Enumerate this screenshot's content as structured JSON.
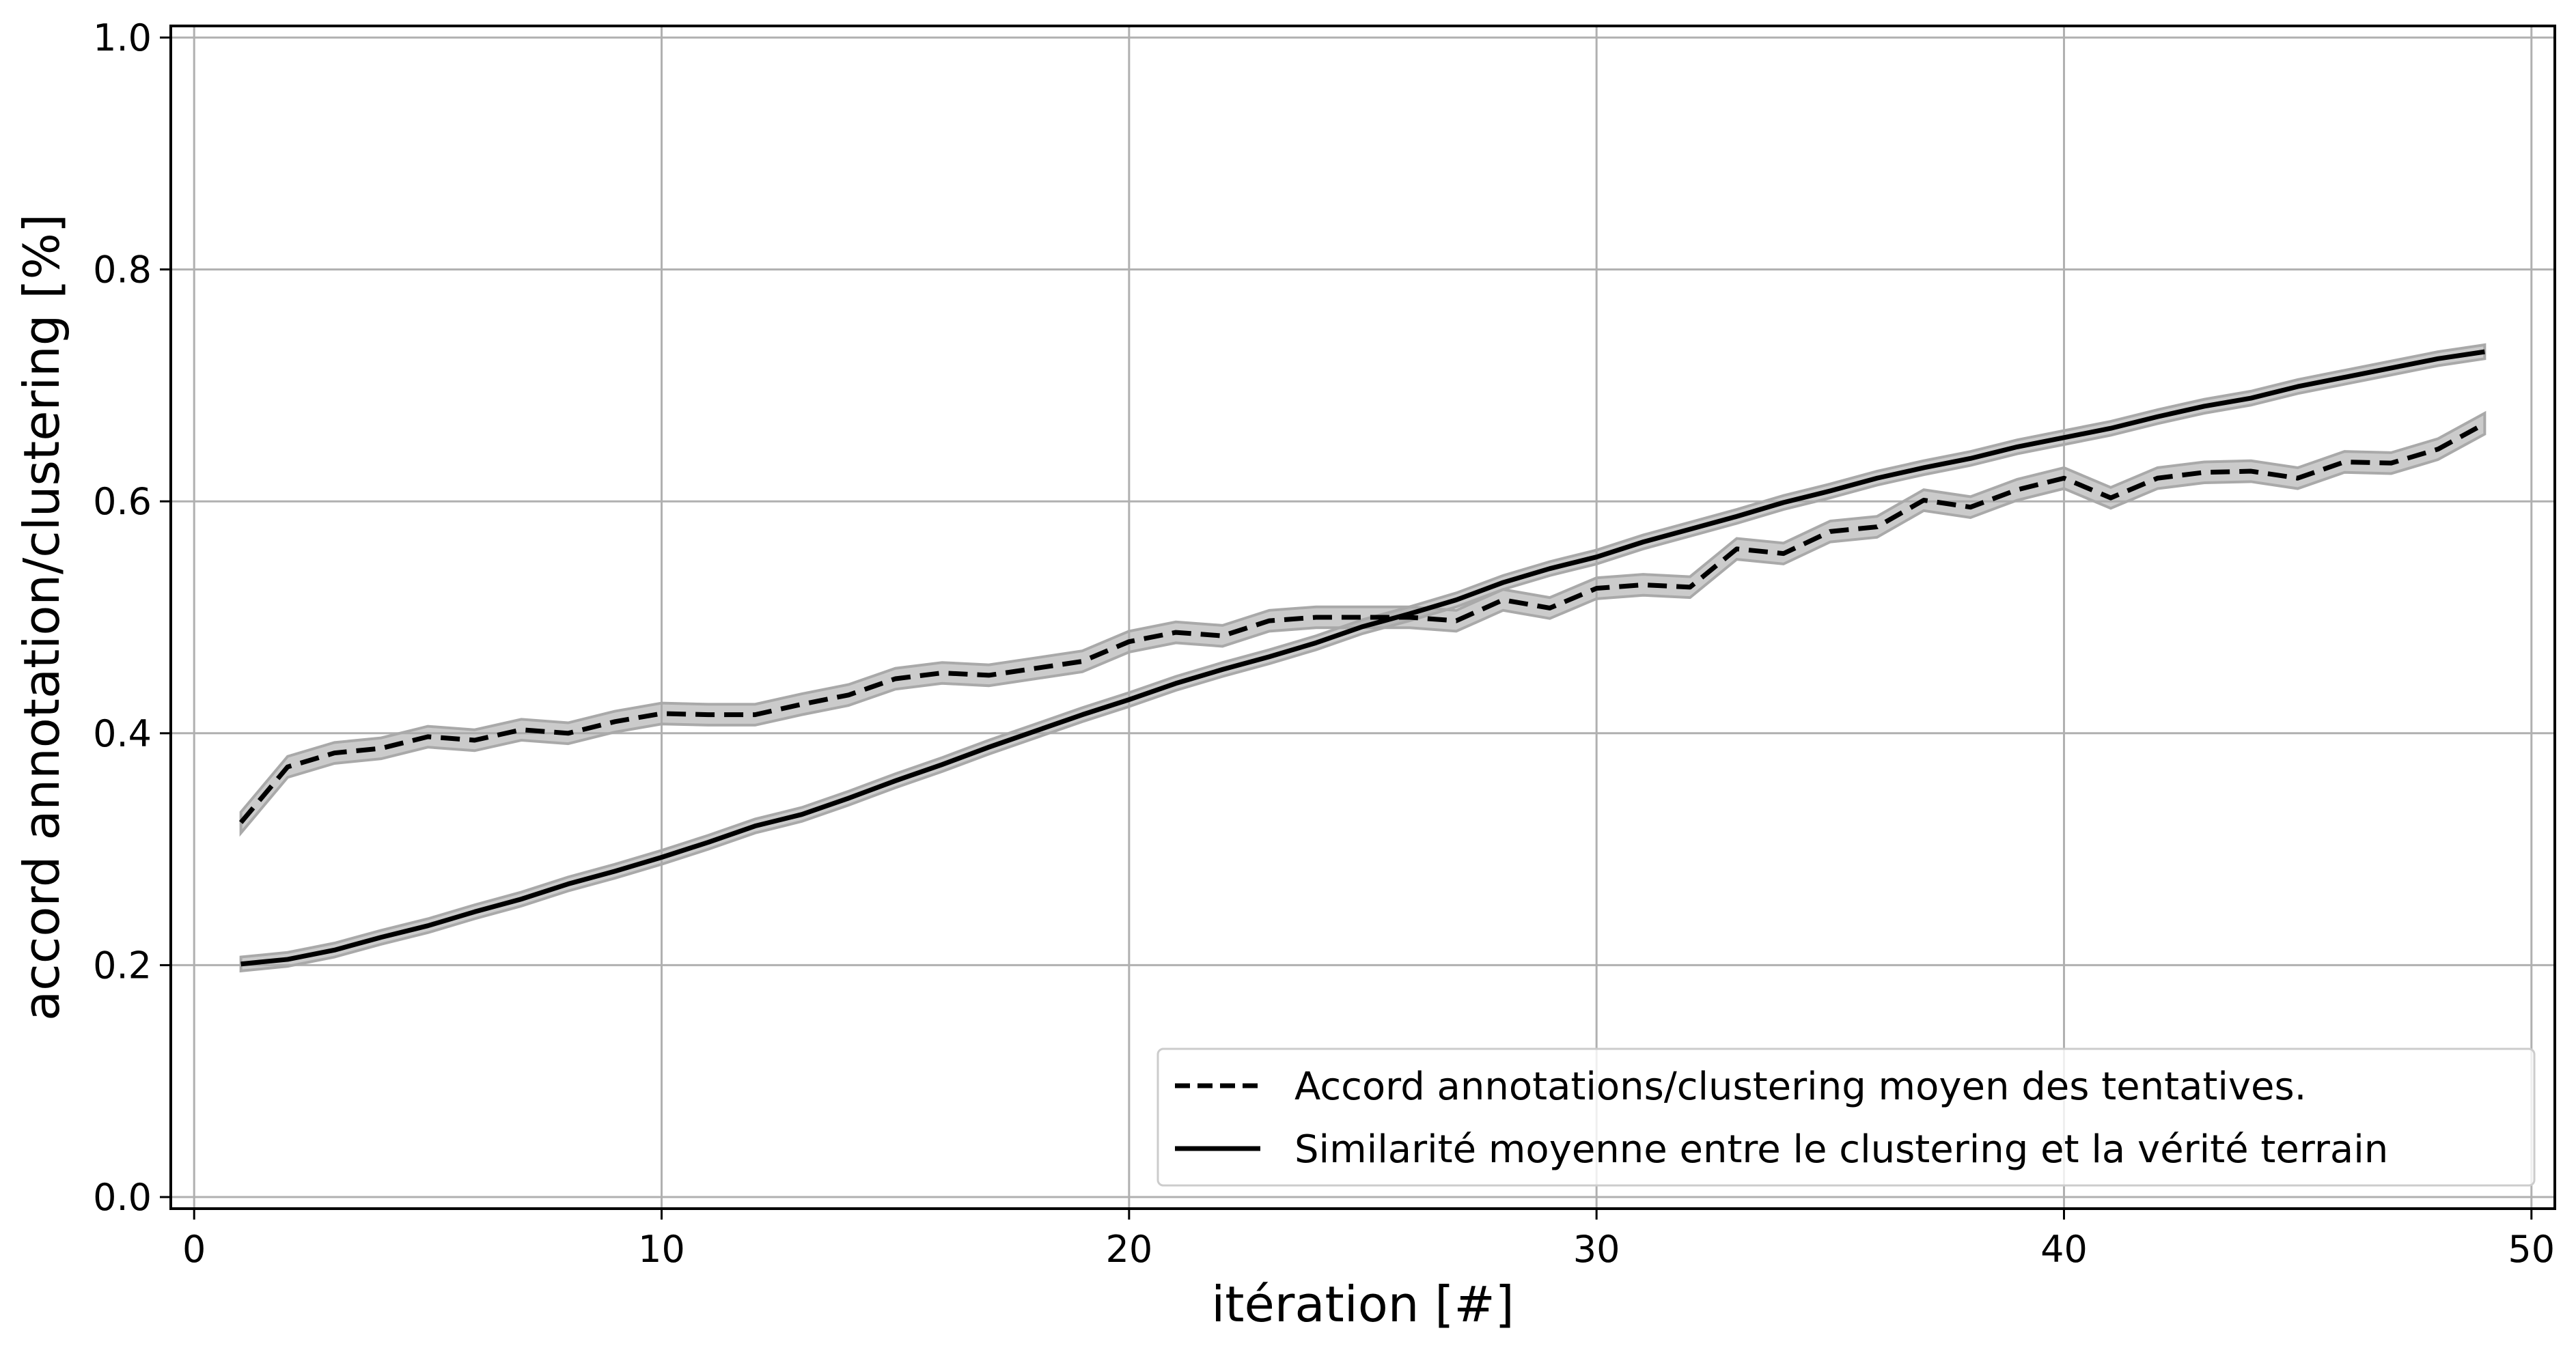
{
  "chart_data": {
    "type": "line",
    "xlabel": "itération [#]",
    "ylabel": "accord annotation/clustering [%]",
    "xlim": [
      -0.5,
      50.5
    ],
    "ylim": [
      -0.01,
      1.01
    ],
    "xticks": [
      0,
      10,
      20,
      30,
      40,
      50
    ],
    "yticks": [
      0.0,
      0.2,
      0.4,
      0.6,
      0.8,
      1.0
    ],
    "xtick_labels": [
      "0",
      "10",
      "20",
      "30",
      "40",
      "50"
    ],
    "ytick_labels": [
      "0.0",
      "0.2",
      "0.4",
      "0.6",
      "0.8",
      "1.0"
    ],
    "grid": true,
    "legend_position": "bottom-right",
    "colors": {
      "line": "#000000",
      "band": "#a9a9a9",
      "grid": "#b0b0b0"
    },
    "x": [
      1,
      2,
      3,
      4,
      5,
      6,
      7,
      8,
      9,
      10,
      11,
      12,
      13,
      14,
      15,
      16,
      17,
      18,
      19,
      20,
      21,
      22,
      23,
      24,
      25,
      26,
      27,
      28,
      29,
      30,
      31,
      32,
      33,
      34,
      35,
      36,
      37,
      38,
      39,
      40,
      41,
      42,
      43,
      44,
      45,
      46,
      47,
      48,
      49
    ],
    "series": [
      {
        "name": "Accord annotations/clustering moyen des tentatives.",
        "style": "dashed",
        "values": [
          0.323,
          0.371,
          0.383,
          0.387,
          0.397,
          0.394,
          0.403,
          0.4,
          0.41,
          0.417,
          0.416,
          0.416,
          0.425,
          0.433,
          0.447,
          0.452,
          0.45,
          0.456,
          0.462,
          0.479,
          0.487,
          0.484,
          0.497,
          0.5,
          0.5,
          0.5,
          0.497,
          0.515,
          0.508,
          0.525,
          0.528,
          0.526,
          0.559,
          0.555,
          0.574,
          0.578,
          0.601,
          0.595,
          0.61,
          0.62,
          0.603,
          0.62,
          0.625,
          0.626,
          0.62,
          0.634,
          0.633,
          0.645,
          0.667
        ],
        "band": 0.009
      },
      {
        "name": "Similarité moyenne entre le clustering et la vérité terrain",
        "style": "solid",
        "values": [
          0.201,
          0.205,
          0.213,
          0.224,
          0.234,
          0.246,
          0.257,
          0.27,
          0.281,
          0.293,
          0.306,
          0.32,
          0.33,
          0.344,
          0.359,
          0.373,
          0.388,
          0.402,
          0.416,
          0.429,
          0.443,
          0.455,
          0.466,
          0.478,
          0.492,
          0.503,
          0.515,
          0.53,
          0.542,
          0.552,
          0.565,
          0.576,
          0.587,
          0.599,
          0.609,
          0.62,
          0.629,
          0.637,
          0.647,
          0.655,
          0.663,
          0.673,
          0.682,
          0.689,
          0.699,
          0.707,
          0.715,
          0.723,
          0.729
        ],
        "band": 0.006
      }
    ]
  }
}
